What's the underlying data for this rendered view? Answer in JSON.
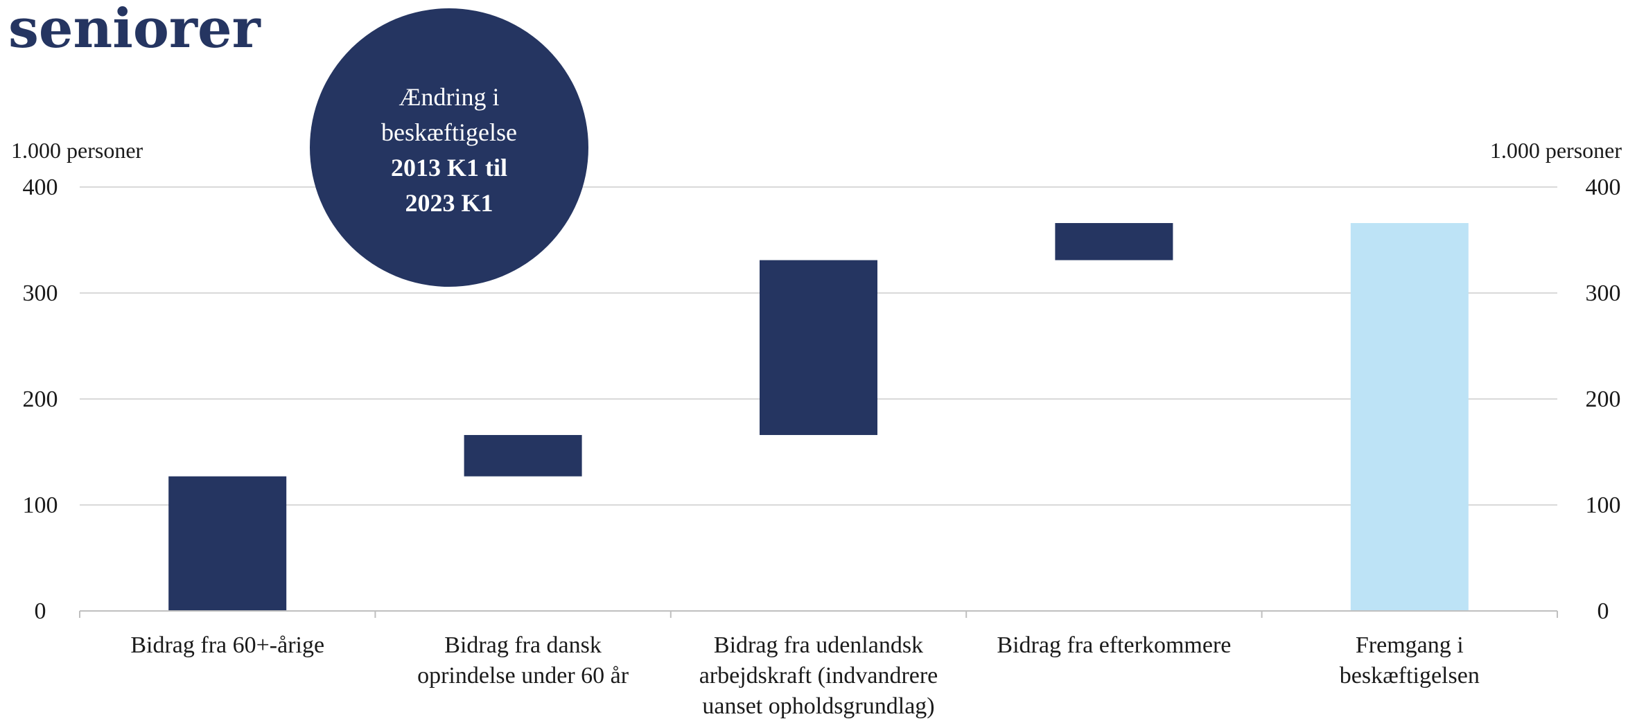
{
  "page_title": "seniorer",
  "badge": {
    "line1": "Ændring i",
    "line2": "beskæftigelse",
    "line3": "2013 K1 til",
    "line4": "2023 K1"
  },
  "colors": {
    "navy": "#253561",
    "light_blue": "#bde3f6",
    "grid": "#d9d9d9",
    "axis": "#bfbfbf",
    "text": "#1a1a1a"
  },
  "chart_data": {
    "type": "bar",
    "subtype": "waterfall",
    "ylabel_left": "1.000 personer",
    "ylabel_right": "1.000 personer",
    "ylim": [
      0,
      400
    ],
    "yticks": [
      0,
      100,
      200,
      300,
      400
    ],
    "grid": true,
    "categories": [
      [
        "Bidrag fra 60+-årige"
      ],
      [
        "Bidrag fra dansk",
        "oprindelse under 60 år"
      ],
      [
        "Bidrag fra udenlandsk",
        "arbejdskraft (indvandrere",
        "uanset opholdsgrundlag)"
      ],
      [
        "Bidrag fra efterkommere"
      ],
      [
        "Fremgang i",
        "beskæftigelsen"
      ]
    ],
    "bars": [
      {
        "start": 0,
        "end": 127,
        "value": 127,
        "kind": "contribution"
      },
      {
        "start": 127,
        "end": 166,
        "value": 39,
        "kind": "contribution"
      },
      {
        "start": 166,
        "end": 331,
        "value": 165,
        "kind": "contribution"
      },
      {
        "start": 331,
        "end": 366,
        "value": 35,
        "kind": "contribution"
      },
      {
        "start": 0,
        "end": 366,
        "value": 366,
        "kind": "total"
      }
    ]
  }
}
